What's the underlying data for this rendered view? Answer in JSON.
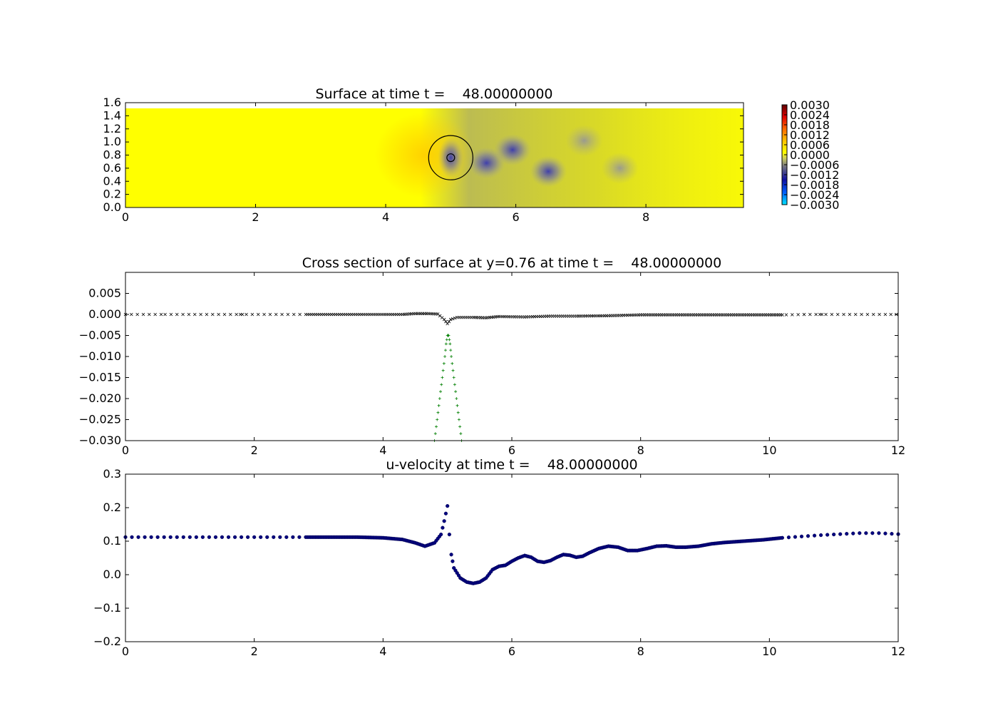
{
  "chart_data": [
    {
      "type": "heatmap",
      "title": "Surface at time t =    48.00000000",
      "xlim": [
        0,
        9.5
      ],
      "ylim": [
        0,
        1.6
      ],
      "xticks": [
        "0",
        "2",
        "4",
        "6",
        "8"
      ],
      "yticks": [
        "0.0",
        "0.2",
        "0.4",
        "0.6",
        "0.8",
        "1.0",
        "1.2",
        "1.4",
        "1.6"
      ],
      "domain_y_top": 1.52,
      "background_value": 0.0,
      "colorbar": {
        "range": [
          -0.003,
          0.003
        ],
        "ticks": [
          "0.0030",
          "0.0024",
          "0.0018",
          "0.0012",
          "0.0006",
          "0.0000",
          "−0.0006",
          "−0.0012",
          "−0.0018",
          "−0.0024",
          "−0.0030"
        ]
      },
      "features": [
        {
          "x": 4.6,
          "y": 0.8,
          "value": 0.0004
        },
        {
          "x": 5.0,
          "y": 0.76,
          "value": -0.0018
        },
        {
          "x": 5.55,
          "y": 0.68,
          "value": -0.001
        },
        {
          "x": 5.95,
          "y": 0.88,
          "value": -0.0011
        },
        {
          "x": 6.5,
          "y": 0.55,
          "value": -0.0012
        },
        {
          "x": 7.05,
          "y": 1.02,
          "value": -0.0007
        },
        {
          "x": 7.6,
          "y": 0.6,
          "value": -0.0003
        }
      ],
      "circles": [
        {
          "cx": 5.0,
          "cy": 0.76,
          "r": 0.34
        },
        {
          "cx": 5.0,
          "cy": 0.76,
          "r": 0.06
        }
      ]
    },
    {
      "type": "scatter",
      "title": "Cross section of surface at y=0.76 at time t =    48.00000000",
      "xlim": [
        0,
        12
      ],
      "ylim": [
        -0.03,
        0.01
      ],
      "xticks": [
        "0",
        "2",
        "4",
        "6",
        "8",
        "10",
        "12"
      ],
      "yticks": [
        "−0.030",
        "−0.025",
        "−0.020",
        "−0.015",
        "−0.010",
        "−0.005",
        "0.000",
        "0.005"
      ],
      "series": [
        {
          "marker": "x",
          "color": "#000000",
          "points": [
            [
              0,
              0
            ],
            [
              0.4,
              0
            ],
            [
              0.8,
              0
            ],
            [
              1.2,
              0
            ],
            [
              1.6,
              0
            ],
            [
              2.0,
              0
            ],
            [
              2.4,
              0
            ],
            [
              2.8,
              0
            ],
            [
              3.2,
              0
            ],
            [
              3.6,
              0
            ],
            [
              4.0,
              0
            ],
            [
              4.3,
              0
            ],
            [
              4.5,
              0.0002
            ],
            [
              4.7,
              0.0002
            ],
            [
              4.85,
              0.0001
            ],
            [
              4.95,
              -0.0012
            ],
            [
              5.0,
              -0.0022
            ],
            [
              5.05,
              -0.0012
            ],
            [
              5.15,
              -0.0007
            ],
            [
              5.4,
              -0.0007
            ],
            [
              5.6,
              -0.0008
            ],
            [
              5.8,
              -0.0005
            ],
            [
              6.2,
              -0.0006
            ],
            [
              6.6,
              -0.0004
            ],
            [
              7.0,
              -0.0004
            ],
            [
              7.5,
              -0.0003
            ],
            [
              8.0,
              -0.0001
            ],
            [
              8.5,
              -0.0001
            ],
            [
              9.0,
              -0.0001
            ],
            [
              9.5,
              -0.0001
            ],
            [
              10.0,
              -0.0001
            ],
            [
              10.2,
              -0.0001
            ],
            [
              10.6,
              0
            ],
            [
              11.0,
              0
            ],
            [
              11.4,
              0
            ],
            [
              11.8,
              0
            ],
            [
              12.0,
              0
            ]
          ]
        },
        {
          "marker": "+",
          "color": "#007f00",
          "points": [
            [
              4.8,
              -0.03
            ],
            [
              4.84,
              -0.025
            ],
            [
              4.88,
              -0.02
            ],
            [
              4.92,
              -0.015
            ],
            [
              4.96,
              -0.01
            ],
            [
              4.98,
              -0.007
            ],
            [
              5.0,
              -0.005
            ],
            [
              5.02,
              -0.005
            ],
            [
              5.04,
              -0.007
            ],
            [
              5.06,
              -0.01
            ],
            [
              5.1,
              -0.015
            ],
            [
              5.14,
              -0.02
            ],
            [
              5.18,
              -0.025
            ],
            [
              5.22,
              -0.03
            ]
          ]
        }
      ]
    },
    {
      "type": "scatter",
      "title": "u-velocity at time t =    48.00000000",
      "xlim": [
        0,
        12
      ],
      "ylim": [
        -0.2,
        0.3
      ],
      "xticks": [
        "0",
        "2",
        "4",
        "6",
        "8",
        "10",
        "12"
      ],
      "yticks": [
        "−0.2",
        "−0.1",
        "0.0",
        "0.1",
        "0.2",
        "0.3"
      ],
      "series": [
        {
          "marker": "o",
          "color": "#00007f",
          "points": [
            [
              0,
              0.112
            ],
            [
              0.5,
              0.112
            ],
            [
              1.0,
              0.112
            ],
            [
              1.5,
              0.112
            ],
            [
              2.0,
              0.112
            ],
            [
              2.5,
              0.112
            ],
            [
              2.8,
              0.112
            ],
            [
              3.2,
              0.112
            ],
            [
              3.6,
              0.112
            ],
            [
              4.0,
              0.11
            ],
            [
              4.3,
              0.105
            ],
            [
              4.5,
              0.095
            ],
            [
              4.65,
              0.085
            ],
            [
              4.8,
              0.095
            ],
            [
              4.9,
              0.12
            ],
            [
              4.95,
              0.16
            ],
            [
              5.0,
              0.205
            ],
            [
              5.03,
              0.12
            ],
            [
              5.06,
              0.06
            ],
            [
              5.1,
              0.02
            ],
            [
              5.2,
              -0.01
            ],
            [
              5.3,
              -0.022
            ],
            [
              5.4,
              -0.026
            ],
            [
              5.5,
              -0.022
            ],
            [
              5.6,
              -0.01
            ],
            [
              5.7,
              0.015
            ],
            [
              5.8,
              0.025
            ],
            [
              5.9,
              0.028
            ],
            [
              6.0,
              0.04
            ],
            [
              6.1,
              0.05
            ],
            [
              6.2,
              0.057
            ],
            [
              6.3,
              0.052
            ],
            [
              6.4,
              0.04
            ],
            [
              6.5,
              0.037
            ],
            [
              6.6,
              0.042
            ],
            [
              6.7,
              0.052
            ],
            [
              6.8,
              0.06
            ],
            [
              6.9,
              0.058
            ],
            [
              7.0,
              0.052
            ],
            [
              7.1,
              0.055
            ],
            [
              7.2,
              0.065
            ],
            [
              7.35,
              0.078
            ],
            [
              7.5,
              0.085
            ],
            [
              7.65,
              0.082
            ],
            [
              7.8,
              0.072
            ],
            [
              7.95,
              0.072
            ],
            [
              8.1,
              0.078
            ],
            [
              8.25,
              0.085
            ],
            [
              8.4,
              0.086
            ],
            [
              8.55,
              0.082
            ],
            [
              8.7,
              0.082
            ],
            [
              8.9,
              0.085
            ],
            [
              9.1,
              0.092
            ],
            [
              9.3,
              0.096
            ],
            [
              9.6,
              0.1
            ],
            [
              9.9,
              0.104
            ],
            [
              10.2,
              0.11
            ],
            [
              10.5,
              0.114
            ],
            [
              10.8,
              0.118
            ],
            [
              11.1,
              0.121
            ],
            [
              11.4,
              0.124
            ],
            [
              11.7,
              0.124
            ],
            [
              12.0,
              0.121
            ]
          ]
        }
      ]
    }
  ]
}
